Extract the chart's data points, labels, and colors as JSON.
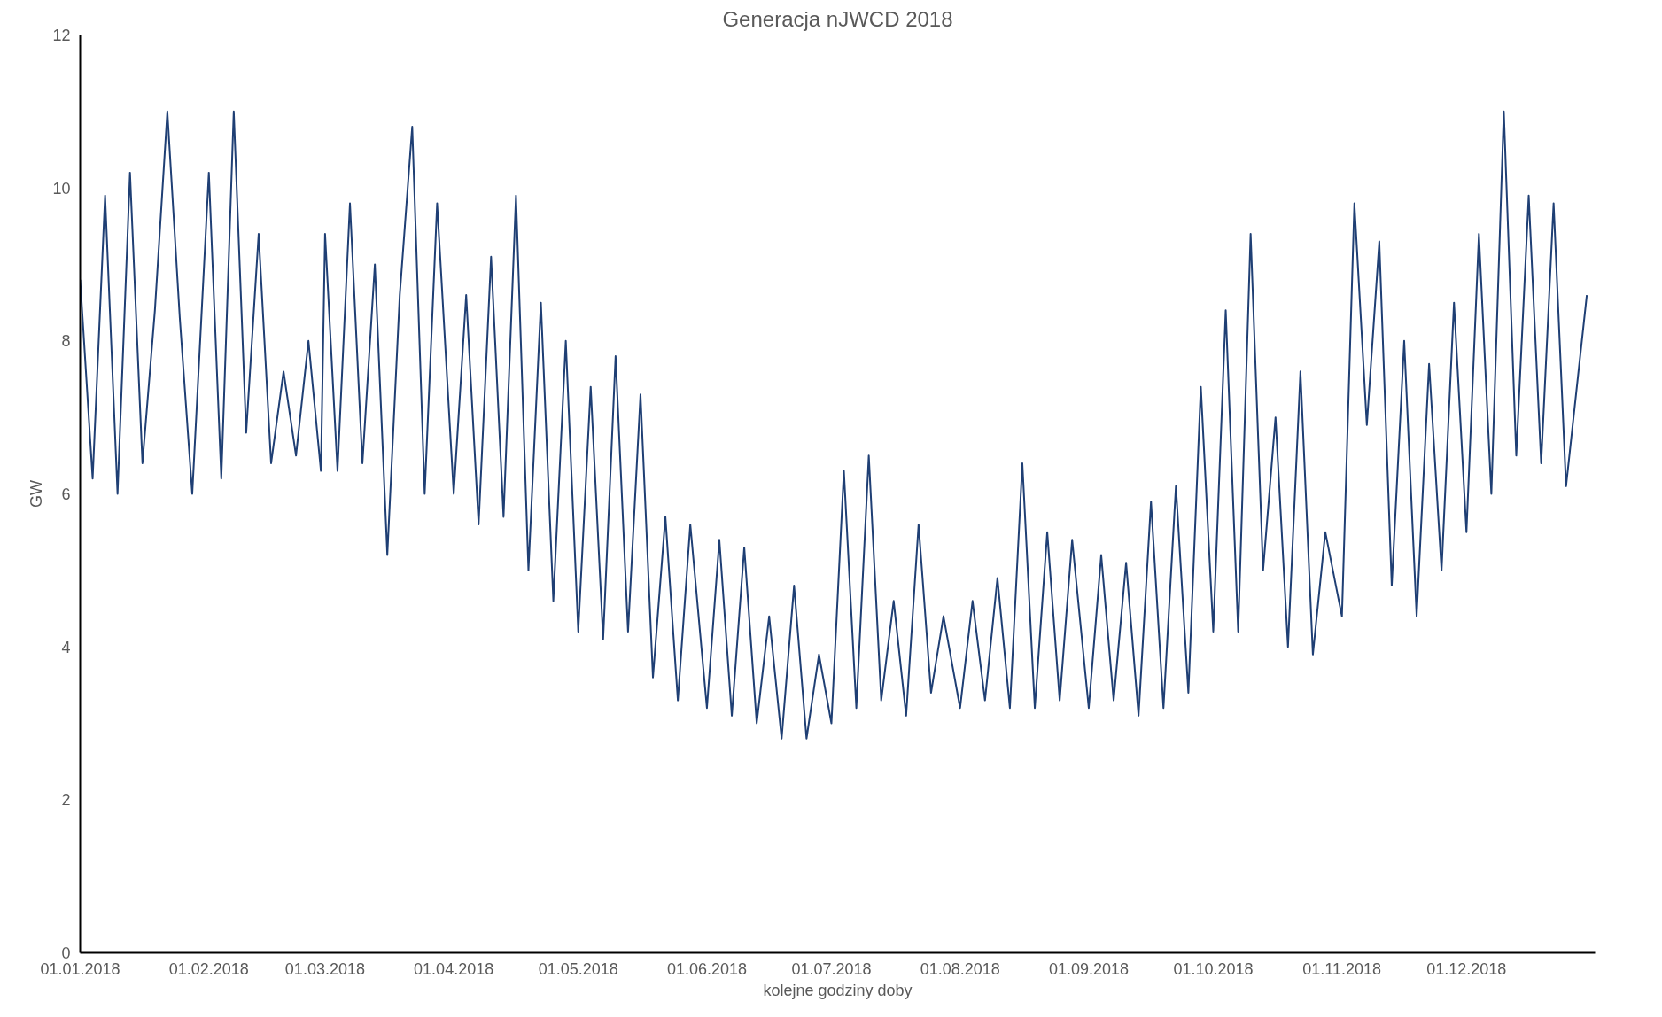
{
  "chart_data": {
    "type": "line",
    "title": "Generacja nJWCD 2018",
    "xlabel": "kolejne godziny doby",
    "ylabel": "GW",
    "xlim": [
      "2018-01-01",
      "2019-01-01"
    ],
    "ylim": [
      0,
      12
    ],
    "yticks": [
      0,
      2,
      4,
      6,
      8,
      10,
      12
    ],
    "xticks": [
      {
        "value": "2018-01-01",
        "label": "01.01.2018"
      },
      {
        "value": "2018-02-01",
        "label": "01.02.2018"
      },
      {
        "value": "2018-03-01",
        "label": "01.03.2018"
      },
      {
        "value": "2018-04-01",
        "label": "01.04.2018"
      },
      {
        "value": "2018-05-01",
        "label": "01.05.2018"
      },
      {
        "value": "2018-06-01",
        "label": "01.06.2018"
      },
      {
        "value": "2018-07-01",
        "label": "01.07.2018"
      },
      {
        "value": "2018-08-01",
        "label": "01.08.2018"
      },
      {
        "value": "2018-09-01",
        "label": "01.09.2018"
      },
      {
        "value": "2018-10-01",
        "label": "01.10.2018"
      },
      {
        "value": "2018-11-01",
        "label": "01.11.2018"
      },
      {
        "value": "2018-12-01",
        "label": "01.12.2018"
      }
    ],
    "x": [
      "2018-01-01",
      "2018-01-04",
      "2018-01-07",
      "2018-01-10",
      "2018-01-13",
      "2018-01-16",
      "2018-01-19",
      "2018-01-22",
      "2018-01-25",
      "2018-01-28",
      "2018-02-01",
      "2018-02-04",
      "2018-02-07",
      "2018-02-10",
      "2018-02-13",
      "2018-02-16",
      "2018-02-19",
      "2018-02-22",
      "2018-02-25",
      "2018-02-28",
      "2018-03-01",
      "2018-03-04",
      "2018-03-07",
      "2018-03-10",
      "2018-03-13",
      "2018-03-16",
      "2018-03-19",
      "2018-03-22",
      "2018-03-25",
      "2018-03-28",
      "2018-04-01",
      "2018-04-04",
      "2018-04-07",
      "2018-04-10",
      "2018-04-13",
      "2018-04-16",
      "2018-04-19",
      "2018-04-22",
      "2018-04-25",
      "2018-04-28",
      "2018-05-01",
      "2018-05-04",
      "2018-05-07",
      "2018-05-10",
      "2018-05-13",
      "2018-05-16",
      "2018-05-19",
      "2018-05-22",
      "2018-05-25",
      "2018-05-28",
      "2018-06-01",
      "2018-06-04",
      "2018-06-07",
      "2018-06-10",
      "2018-06-13",
      "2018-06-16",
      "2018-06-19",
      "2018-06-22",
      "2018-06-25",
      "2018-06-28",
      "2018-07-01",
      "2018-07-04",
      "2018-07-07",
      "2018-07-10",
      "2018-07-13",
      "2018-07-16",
      "2018-07-19",
      "2018-07-22",
      "2018-07-25",
      "2018-07-28",
      "2018-08-01",
      "2018-08-04",
      "2018-08-07",
      "2018-08-10",
      "2018-08-13",
      "2018-08-16",
      "2018-08-19",
      "2018-08-22",
      "2018-08-25",
      "2018-08-28",
      "2018-09-01",
      "2018-09-04",
      "2018-09-07",
      "2018-09-10",
      "2018-09-13",
      "2018-09-16",
      "2018-09-19",
      "2018-09-22",
      "2018-09-25",
      "2018-09-28",
      "2018-10-01",
      "2018-10-04",
      "2018-10-07",
      "2018-10-10",
      "2018-10-13",
      "2018-10-16",
      "2018-10-19",
      "2018-10-22",
      "2018-10-25",
      "2018-10-28",
      "2018-11-01",
      "2018-11-04",
      "2018-11-07",
      "2018-11-10",
      "2018-11-13",
      "2018-11-16",
      "2018-11-19",
      "2018-11-22",
      "2018-11-25",
      "2018-11-28",
      "2018-12-01",
      "2018-12-04",
      "2018-12-07",
      "2018-12-10",
      "2018-12-13",
      "2018-12-16",
      "2018-12-19",
      "2018-12-22",
      "2018-12-25",
      "2018-12-30"
    ],
    "series": [
      {
        "color": "#1f3f74",
        "values": [
          8.8,
          6.2,
          9.9,
          6.0,
          10.2,
          6.4,
          8.4,
          11.0,
          8.3,
          6.0,
          10.2,
          6.2,
          11.0,
          6.8,
          9.4,
          6.4,
          7.6,
          6.5,
          8.0,
          6.3,
          9.4,
          6.3,
          9.8,
          6.4,
          9.0,
          5.2,
          8.6,
          10.8,
          6.0,
          9.8,
          6.0,
          8.6,
          5.6,
          9.1,
          5.7,
          9.9,
          5.0,
          8.5,
          4.6,
          8.0,
          4.2,
          7.4,
          4.1,
          7.8,
          4.2,
          7.3,
          3.6,
          5.7,
          3.3,
          5.6,
          3.2,
          5.4,
          3.1,
          5.3,
          3.0,
          4.4,
          2.8,
          4.8,
          2.8,
          3.9,
          3.0,
          6.3,
          3.2,
          6.5,
          3.3,
          4.6,
          3.1,
          5.6,
          3.4,
          4.4,
          3.2,
          4.6,
          3.3,
          4.9,
          3.2,
          6.4,
          3.2,
          5.5,
          3.3,
          5.4,
          3.2,
          5.2,
          3.3,
          5.1,
          3.1,
          5.9,
          3.2,
          6.1,
          3.4,
          7.4,
          4.2,
          8.4,
          4.2,
          9.4,
          5.0,
          7.0,
          4.0,
          7.6,
          3.9,
          5.5,
          4.4,
          9.8,
          6.9,
          9.3,
          4.8,
          8.0,
          4.4,
          7.7,
          5.0,
          8.5,
          5.5,
          9.4,
          6.0,
          11.0,
          6.5,
          9.9,
          6.4,
          9.8,
          6.1,
          8.6
        ]
      }
    ],
    "grid": false
  }
}
